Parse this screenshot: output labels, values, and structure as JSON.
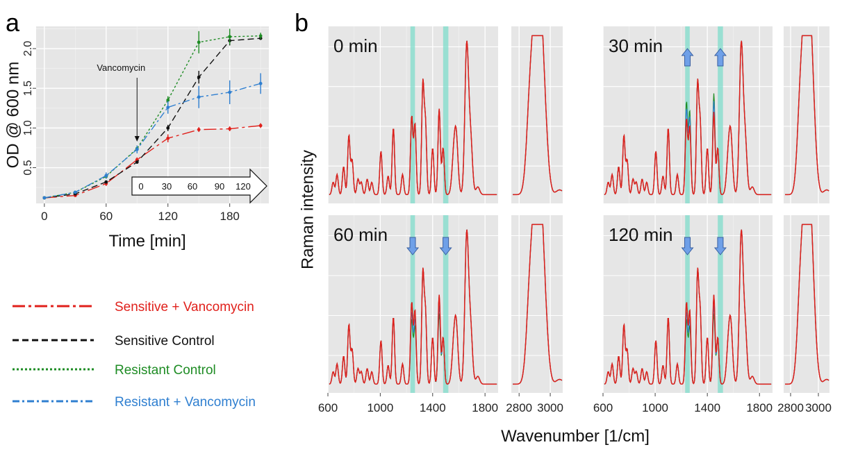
{
  "panel_labels": {
    "a": "a",
    "b": "b"
  },
  "colors": {
    "sensitive_vanco": "#e0201b",
    "sensitive_control": "#111111",
    "resistant_control": "#1e8c24",
    "resistant_vanco": "#2f7fd0",
    "panel_bg": "#e6e6e6",
    "highlight": "#7fdccb",
    "arrow": "#6fa0e8"
  },
  "legend": {
    "items": [
      {
        "label": "Sensitive + Vancomycin",
        "color": "#e0201b",
        "dash": "18,5,4,5"
      },
      {
        "label": "Sensitive Control",
        "color": "#111111",
        "dash": "9,5"
      },
      {
        "label": "Resistant Control",
        "color": "#1e8c24",
        "dash": "3,3"
      },
      {
        "label": "Resistant + Vancomycin",
        "color": "#2f7fd0",
        "dash": "10,4,3,4"
      }
    ]
  },
  "chart_data": [
    {
      "type": "line",
      "panel": "a",
      "xlabel": "Time [min]",
      "ylabel": "OD @ 600 nm",
      "xlim": [
        -8,
        218
      ],
      "ylim": [
        0.05,
        2.28
      ],
      "xticks": [
        0,
        60,
        120,
        180
      ],
      "yticks": [
        0.5,
        1.0,
        1.5,
        2.0
      ],
      "ytick_labels": [
        "0.5",
        "1.0",
        "1.5",
        "2.0"
      ],
      "grid": true,
      "annotation": "Vancomycin",
      "annotation_x": 90,
      "inset_arrow_labels": [
        "0",
        "30",
        "60",
        "90",
        "120"
      ],
      "x": [
        0,
        30,
        60,
        90,
        120,
        150,
        180,
        210
      ],
      "series": [
        {
          "name": "Sensitive + Vancomycin",
          "values": [
            0.12,
            0.15,
            0.3,
            0.6,
            0.87,
            0.98,
            0.99,
            1.03
          ],
          "err": [
            0.01,
            0.01,
            0.03,
            0.03,
            0.05,
            0.03,
            0.03,
            0.03
          ]
        },
        {
          "name": "Sensitive Control",
          "values": [
            0.12,
            0.17,
            0.32,
            0.57,
            1.0,
            1.64,
            2.1,
            2.13
          ],
          "err": [
            0.01,
            0.01,
            0.02,
            0.02,
            0.04,
            0.08,
            0.06,
            0.02
          ]
        },
        {
          "name": "Resistant Control",
          "values": [
            0.12,
            0.19,
            0.39,
            0.74,
            1.35,
            2.08,
            2.15,
            2.16
          ],
          "err": [
            0.01,
            0.01,
            0.03,
            0.04,
            0.05,
            0.14,
            0.1,
            0.04
          ]
        },
        {
          "name": "Resistant + Vancomycin",
          "values": [
            0.12,
            0.19,
            0.4,
            0.73,
            1.26,
            1.39,
            1.45,
            1.56
          ],
          "err": [
            0.01,
            0.01,
            0.04,
            0.05,
            0.08,
            0.14,
            0.15,
            0.13
          ]
        }
      ]
    },
    {
      "type": "line",
      "panel": "b",
      "ylabel": "Raman intensity",
      "xlabel": "Wavenumber [1/cm]",
      "x_left_range": [
        600,
        1900
      ],
      "x_right_range": [
        2750,
        3080
      ],
      "xticks_left": [
        600,
        1000,
        1400,
        1800
      ],
      "xticks_right": [
        2800,
        3000
      ],
      "highlight_bands": [
        [
          1230,
          1265
        ],
        [
          1480,
          1520
        ]
      ],
      "facets": [
        {
          "title": "0 min",
          "arrows": []
        },
        {
          "title": "30 min",
          "arrows": [
            "up",
            "up"
          ]
        },
        {
          "title": "60 min",
          "arrows": [
            "down",
            "down"
          ]
        },
        {
          "title": "120 min",
          "arrows": [
            "down",
            "down"
          ]
        }
      ],
      "peaks_left": [
        {
          "x": 640,
          "h": 0.08
        },
        {
          "x": 670,
          "h": 0.13
        },
        {
          "x": 720,
          "h": 0.18
        },
        {
          "x": 760,
          "h": 0.38
        },
        {
          "x": 785,
          "h": 0.22
        },
        {
          "x": 830,
          "h": 0.1
        },
        {
          "x": 855,
          "h": 0.08
        },
        {
          "x": 900,
          "h": 0.1
        },
        {
          "x": 935,
          "h": 0.08
        },
        {
          "x": 1005,
          "h": 0.28
        },
        {
          "x": 1060,
          "h": 0.12
        },
        {
          "x": 1100,
          "h": 0.43
        },
        {
          "x": 1170,
          "h": 0.13
        },
        {
          "x": 1240,
          "h": 0.5
        },
        {
          "x": 1265,
          "h": 0.45
        },
        {
          "x": 1325,
          "h": 0.7
        },
        {
          "x": 1345,
          "h": 0.45
        },
        {
          "x": 1400,
          "h": 0.3
        },
        {
          "x": 1450,
          "h": 0.55
        },
        {
          "x": 1480,
          "h": 0.3
        },
        {
          "x": 1560,
          "h": 0.2
        },
        {
          "x": 1580,
          "h": 0.35
        },
        {
          "x": 1660,
          "h": 0.95
        },
        {
          "x": 1690,
          "h": 0.35
        },
        {
          "x": 1745,
          "h": 0.05
        }
      ],
      "peaks_right": [
        {
          "x": 2870,
          "h": 0.55
        },
        {
          "x": 2905,
          "h": 0.8
        },
        {
          "x": 2935,
          "h": 0.85
        },
        {
          "x": 2965,
          "h": 0.35
        },
        {
          "x": 3060,
          "h": 0.03
        }
      ]
    }
  ]
}
